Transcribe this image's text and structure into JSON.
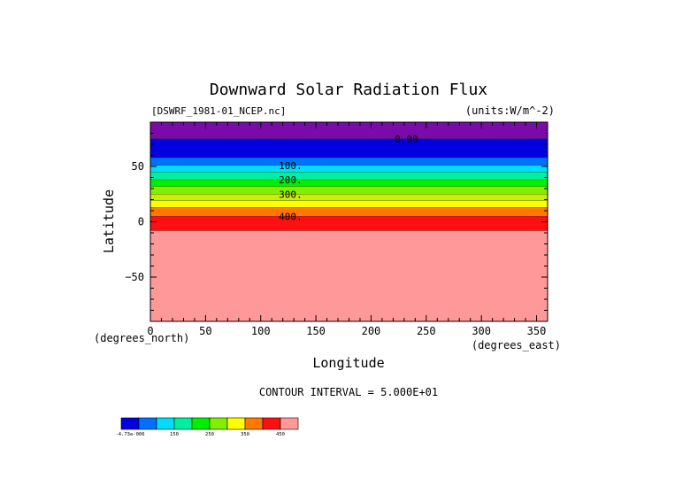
{
  "chart_data": {
    "type": "heatmap",
    "title": "Downward Solar Radiation Flux",
    "file_label": "[DSWRF_1981-01_NCEP.nc]",
    "units_label": "(units:W/m^-2)",
    "xlabel": "Longitude",
    "ylabel": "Latitude",
    "x_units_label": "(degrees_east)",
    "y_units_label": "(degrees_north)",
    "xlim": [
      0,
      360
    ],
    "ylim": [
      -90,
      90
    ],
    "x_ticks": [
      0,
      50,
      100,
      150,
      200,
      250,
      300,
      350
    ],
    "y_ticks": [
      50,
      0,
      -50
    ],
    "contour_interval_label": "CONTOUR INTERVAL = 5.000E+01",
    "bands": [
      {
        "lat_min": 75,
        "lat_max": 90,
        "color": "#7a0aaa"
      },
      {
        "lat_min": 58,
        "lat_max": 75,
        "color": "#0000e0"
      },
      {
        "lat_min": 51,
        "lat_max": 58,
        "color": "#0070ff"
      },
      {
        "lat_min": 45,
        "lat_max": 51,
        "color": "#00dcff"
      },
      {
        "lat_min": 38,
        "lat_max": 45,
        "color": "#00f0a0"
      },
      {
        "lat_min": 32,
        "lat_max": 38,
        "color": "#00f000"
      },
      {
        "lat_min": 25,
        "lat_max": 32,
        "color": "#80f000"
      },
      {
        "lat_min": 19,
        "lat_max": 25,
        "color": "#c8f000"
      },
      {
        "lat_min": 13,
        "lat_max": 19,
        "color": "#ffff00"
      },
      {
        "lat_min": 5,
        "lat_max": 13,
        "color": "#ff7800"
      },
      {
        "lat_min": -8,
        "lat_max": 5,
        "color": "#ff1010"
      },
      {
        "lat_min": -90,
        "lat_max": -8,
        "color": "#ff9898"
      }
    ],
    "contour_labels": [
      {
        "text": "0.00",
        "lon": 232,
        "lat": 75
      },
      {
        "text": "100.",
        "lon": 127,
        "lat": 51
      },
      {
        "text": "200.",
        "lon": 127,
        "lat": 38
      },
      {
        "text": "300.",
        "lon": 127,
        "lat": 25
      },
      {
        "text": "400.",
        "lon": 127,
        "lat": 5
      }
    ],
    "colorbar": {
      "colors": [
        "#0000e0",
        "#0070ff",
        "#00dcff",
        "#00f0a0",
        "#00f000",
        "#80f000",
        "#ffff00",
        "#ff7800",
        "#ff1010",
        "#ff9898"
      ],
      "labels": [
        {
          "text": "-4.73e-006",
          "index": 0.5
        },
        {
          "text": "150",
          "index": 3
        },
        {
          "text": "250",
          "index": 5
        },
        {
          "text": "350",
          "index": 7
        },
        {
          "text": "450",
          "index": 9
        }
      ]
    }
  }
}
